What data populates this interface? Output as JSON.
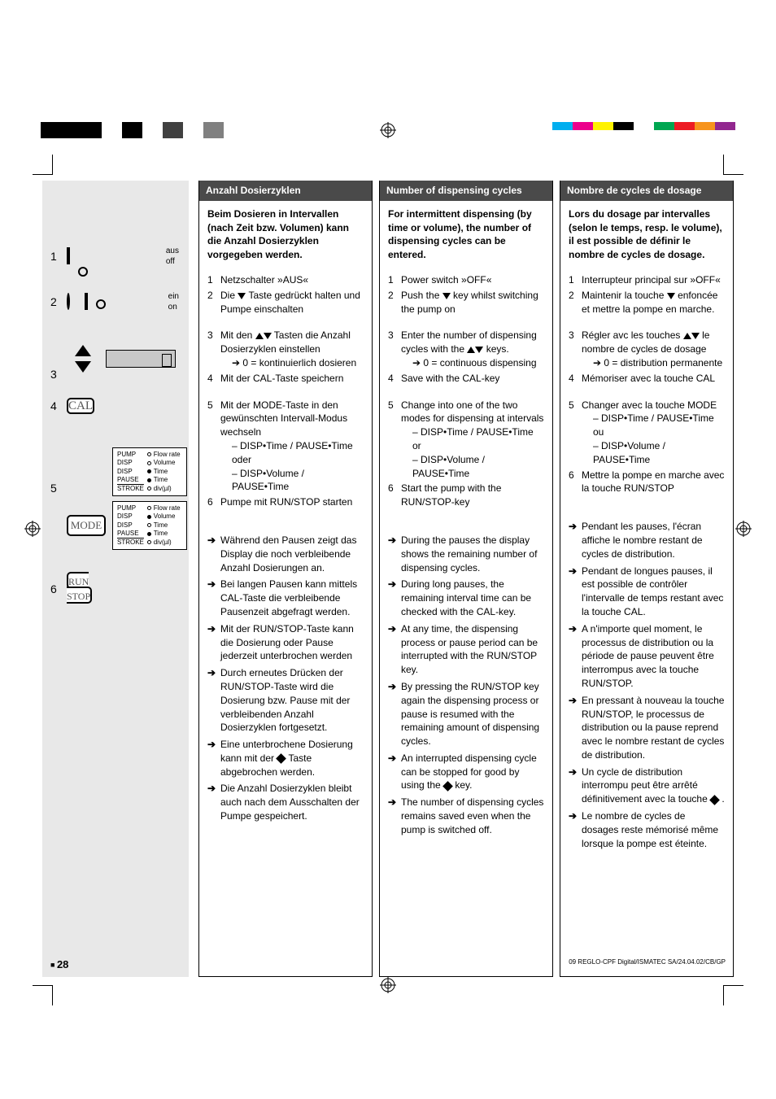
{
  "page_number": "28",
  "footer_text": "09 REGLO-CPF Digital/ISMATEC SA/24.04.02/CB/GP",
  "registration_colors_left": [
    "#000000",
    "#000000",
    "#000000",
    "#ffffff",
    "#000000",
    "#ffffff",
    "#404040",
    "#ffffff",
    "#808080"
  ],
  "registration_colors_right": [
    "#00aeef",
    "#ec008c",
    "#fff200",
    "#000000",
    "#ffffff",
    "#00a651",
    "#ed1c24",
    "#f7941d",
    "#92278f"
  ],
  "sidebar": {
    "label1_a": "aus",
    "label1_b": "off",
    "label2_a": "ein",
    "label2_b": "on",
    "cal": "CAL",
    "mode": "MODE",
    "run": "RUN",
    "stop": "STOP",
    "mode_rows": [
      [
        "PUMP",
        "empty",
        "Flow rate"
      ],
      [
        "DISP",
        "empty",
        "Volume"
      ],
      [
        "DISP",
        "filled",
        "Time"
      ],
      [
        "PAUSE",
        "filled",
        "Time"
      ],
      [
        "STROKE",
        "empty",
        "div(µl)"
      ]
    ],
    "mode_rows2": [
      [
        "PUMP",
        "empty",
        "Flow rate"
      ],
      [
        "DISP",
        "filled",
        "Volume"
      ],
      [
        "DISP",
        "empty",
        "Time"
      ],
      [
        "PAUSE",
        "filled",
        "Time"
      ],
      [
        "STROKE",
        "empty",
        "div(µl)"
      ]
    ]
  },
  "columns": {
    "de": {
      "header": "Anzahl Dosierzyklen",
      "intro": "Beim Dosieren in Intervallen (nach Zeit bzw. Volumen) kann die Anzahl Dosierzyklen vorgegeben werden.",
      "steps": [
        {
          "n": "1",
          "t": "Netzschalter »AUS«"
        },
        {
          "n": "2",
          "t": "Die ▼ Taste gedrückt halten und Pumpe einschalten"
        },
        {
          "n": "3",
          "t": "Mit den ▲▼ Tasten die Anzahl Dosierzyklen einstellen",
          "sub": "➔ 0 = kontinuierlich dosieren"
        },
        {
          "n": "4",
          "t": "Mit der CAL-Taste speichern"
        },
        {
          "n": "5",
          "t": "Mit der MODE-Taste in den gewünschten Intervall-Modus wechseln",
          "sub": "– DISP•Time / PAUSE•Time oder",
          "sub2": "– DISP•Volume / PAUSE•Time"
        },
        {
          "n": "6",
          "t": "Pumpe mit RUN/STOP starten"
        }
      ],
      "notes": [
        "Während den Pausen zeigt das Display die noch verbleibende Anzahl Dosierungen an.",
        "Bei langen Pausen kann mittels CAL-Taste die verbleibende Pausenzeit abgefragt werden.",
        "Mit der RUN/STOP-Taste kann die Dosierung oder Pause jederzeit unterbrochen werden",
        "Durch erneutes Drücken der RUN/STOP-Taste wird die Dosierung bzw. Pause mit der verbleibenden Anzahl Dosierzyklen fortgesetzt.",
        "Eine unterbrochene Dosierung kann mit der ◆ Taste abgebrochen werden.",
        "Die Anzahl Dosierzyklen bleibt auch nach dem Ausschalten der Pumpe gespeichert."
      ]
    },
    "en": {
      "header": "Number of dispensing cycles",
      "intro": "For intermittent dispensing (by time or volume), the number of dispensing cycles can be entered.",
      "steps": [
        {
          "n": "1",
          "t": "Power switch »OFF«"
        },
        {
          "n": "2",
          "t": "Push the ▼ key whilst switching the pump on"
        },
        {
          "n": "3",
          "t": "Enter the number of dispensing cycles with the ▲▼ keys.",
          "sub": "➔ 0 = continuous dispensing"
        },
        {
          "n": "4",
          "t": "Save with the CAL-key"
        },
        {
          "n": "5",
          "t": "Change into one of the two modes for dispensing at intervals",
          "sub": "– DISP•Time / PAUSE•Time or",
          "sub2": "– DISP•Volume / PAUSE•Time"
        },
        {
          "n": "6",
          "t": "Start the pump with the RUN/STOP-key"
        }
      ],
      "notes": [
        "During the pauses the display shows the remaining number of dispensing cycles.",
        "During long pauses, the remaining interval time can be checked with the CAL-key.",
        "At any time, the dispensing process or pause period can be interrupted with the RUN/STOP key.",
        "By pressing the RUN/STOP key again the dispensing process or pause is resumed with the remaining amount of dispensing cycles.",
        "An interrupted dispensing cycle can be stopped for good by using the ◆ key.",
        "The number of dispensing cycles remains saved even when the pump is switched off."
      ]
    },
    "fr": {
      "header": "Nombre de cycles de dosage",
      "intro": "Lors du dosage par intervalles (selon le temps, resp. le volume), il est possible de définir le nombre de cycles de dosage.",
      "steps": [
        {
          "n": "1",
          "t": "Interrupteur principal sur »OFF«"
        },
        {
          "n": "2",
          "t": "Maintenir la touche ▼ enfoncée et mettre la pompe en marche."
        },
        {
          "n": "3",
          "t": "Régler avc les touches ▲▼ le nombre de cycles de dosage",
          "sub": "➔ 0 = distribution permanente"
        },
        {
          "n": "4",
          "t": "Mémoriser avec la touche CAL"
        },
        {
          "n": "5",
          "t": "Changer avec la touche MODE",
          "sub": "– DISP•Time / PAUSE•Time ou",
          "sub2": "– DISP•Volume / PAUSE•Time"
        },
        {
          "n": "6",
          "t": "Mettre la pompe en marche avec la touche RUN/STOP"
        }
      ],
      "notes": [
        "Pendant les pauses, l'écran affiche le nombre restant de cycles de distribution.",
        "Pendant de longues pauses, il est possible de contrôler l'intervalle de temps restant avec la touche CAL.",
        "A n'importe quel moment, le processus de distribution ou la période de pause peuvent être interrompus avec la touche RUN/STOP.",
        "En pressant à nouveau la touche RUN/STOP, le processus de distribution ou la pause reprend avec le nombre restant de cycles de distribution.",
        "Un cycle de distribution interrompu peut être arrêté définitivement avec la touche ◆ .",
        "Le nombre de cycles de dosages reste mémorisé même lorsque la pompe est éteinte."
      ]
    }
  }
}
